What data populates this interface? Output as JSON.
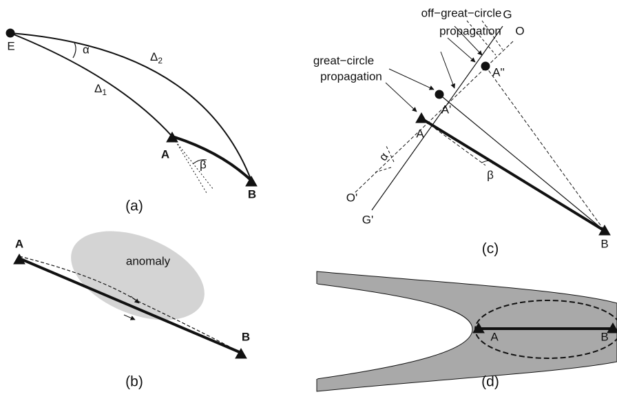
{
  "panel_a": {
    "source": "E",
    "alpha": "α",
    "delta1": {
      "base": "Δ",
      "sub": "1"
    },
    "delta2": {
      "base": "Δ",
      "sub": "2"
    },
    "station_a": "A",
    "beta": "β",
    "station_b": "B",
    "caption": "(a)"
  },
  "panel_b": {
    "station_a": "A",
    "anomaly": "anomaly",
    "station_b": "B",
    "caption": "(b)"
  },
  "panel_c": {
    "off_label": [
      "off−great−circle",
      "propagation"
    ],
    "gc_label": [
      "great−circle",
      "propagation"
    ],
    "g": "G",
    "o": "O",
    "a_dprime": "A''",
    "a_prime": "A'",
    "station_a": "A",
    "o_prime": "O'",
    "g_prime": "G'",
    "alpha": "α",
    "beta": "β",
    "station_b": "B",
    "caption": "(c)"
  },
  "panel_d": {
    "station_a": "A",
    "station_b": "B",
    "caption": "(d)"
  }
}
